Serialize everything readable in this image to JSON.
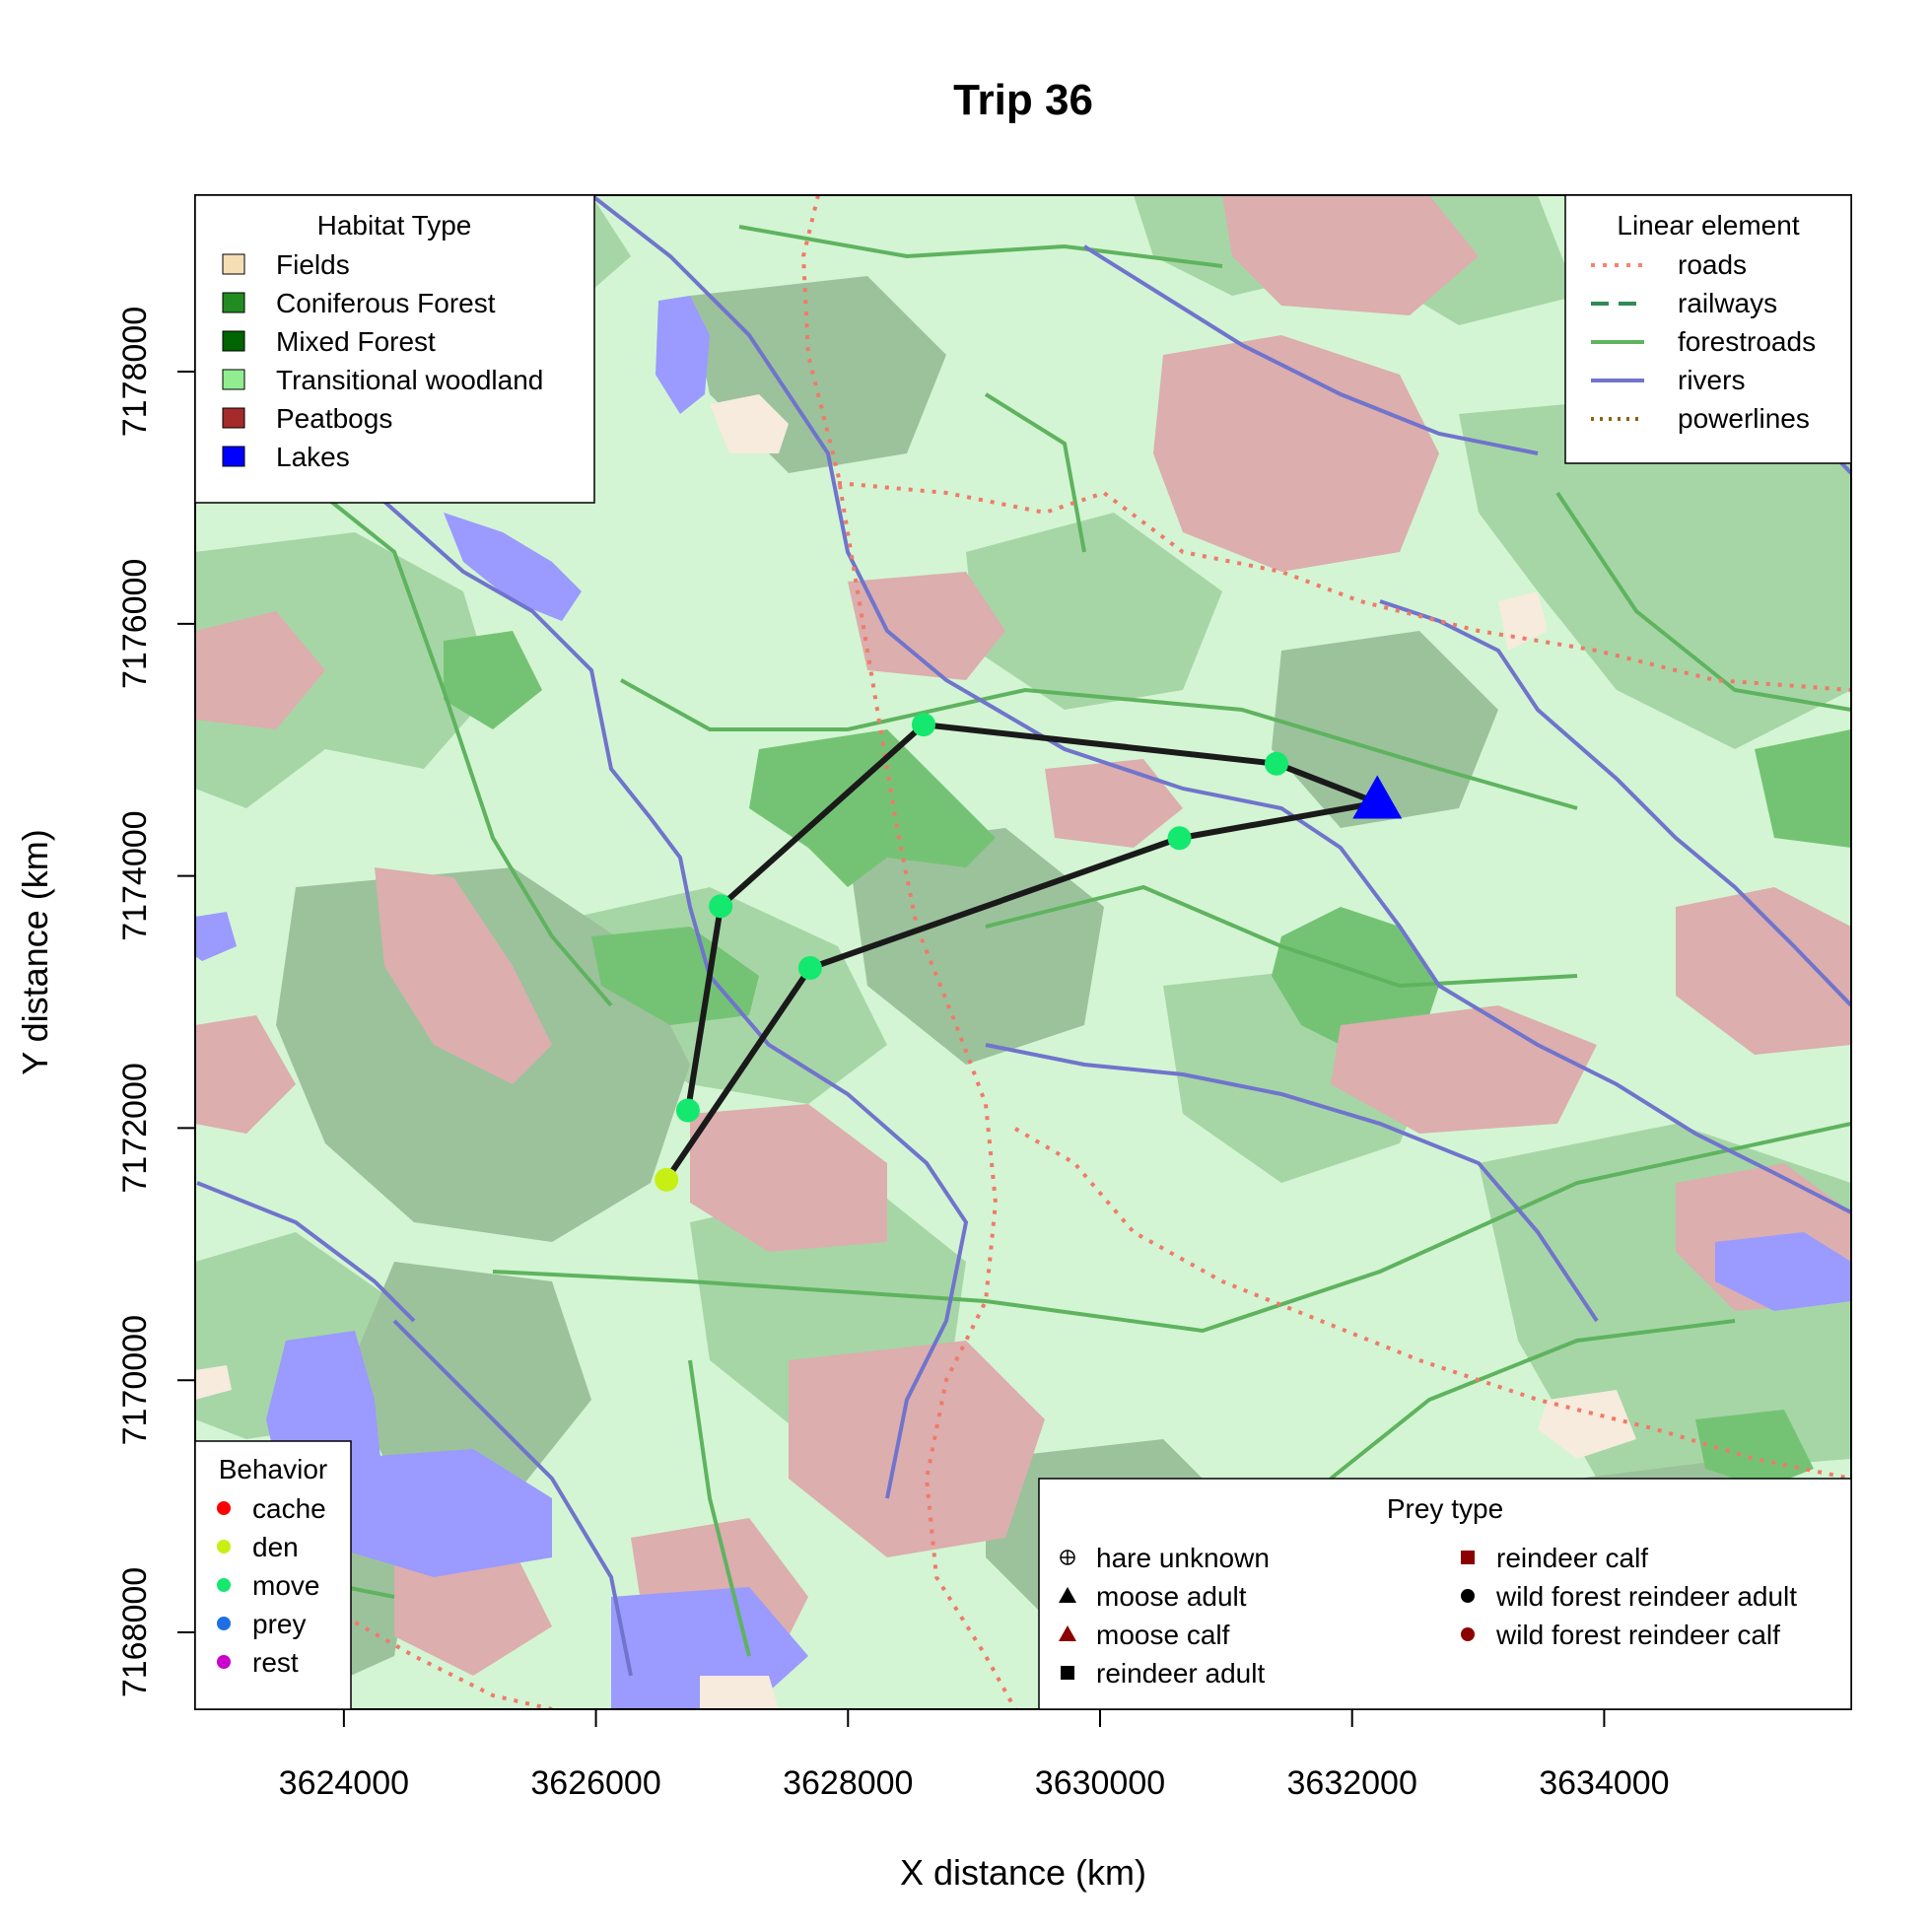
{
  "title": "Trip 36",
  "xlabel": "X distance (km)",
  "ylabel": "Y distance (km)",
  "colors": {
    "transitional": "#d3f5d3",
    "coniferous": "#a6d6a6",
    "mixed": "#9cc29c",
    "dense": "#74c374",
    "peat": "#dcaeae",
    "lake": "#9a9aff",
    "fields": "#f6ebdc",
    "road": "#f07a6a",
    "forestroad": "#5fb35f",
    "river": "#7074cc",
    "track": "#1a1a1a",
    "move": "#14e86e",
    "den": "#c8ef14",
    "den_site": "#0000ff"
  },
  "chart_data": {
    "type": "map",
    "x_ticks": [
      "3624000",
      "3626000",
      "3628000",
      "3630000",
      "3632000",
      "3634000"
    ],
    "y_ticks": [
      "7168000",
      "7170000",
      "7172000",
      "7174000",
      "7176000",
      "7178000"
    ],
    "xlim": [
      3622820,
      3635960
    ],
    "ylim": [
      7167390,
      7179400
    ],
    "track": [
      {
        "x": 3626560,
        "y": 7171590,
        "behavior": "den"
      },
      {
        "x": 3627700,
        "y": 7173270,
        "behavior": "move"
      },
      {
        "x": 3630630,
        "y": 7174300,
        "behavior": "move"
      },
      {
        "x": 3632200,
        "y": 7174580,
        "behavior": "den site"
      },
      {
        "x": 3631400,
        "y": 7174890,
        "behavior": "move"
      },
      {
        "x": 3628600,
        "y": 7175200,
        "behavior": "move"
      },
      {
        "x": 3626990,
        "y": 7173760,
        "behavior": "move"
      },
      {
        "x": 3626730,
        "y": 7172140,
        "behavior": "move"
      }
    ],
    "den_site": {
      "x": 3632200,
      "y": 7174580
    },
    "legend_habitat": {
      "title": "Habitat Type",
      "items": [
        {
          "label": "Fields",
          "color": "#f5deb3"
        },
        {
          "label": "Coniferous Forest",
          "color": "#228b22"
        },
        {
          "label": "Mixed Forest",
          "color": "#006400"
        },
        {
          "label": "Transitional woodland",
          "color": "#90ee90"
        },
        {
          "label": "Peatbogs",
          "color": "#a52a2a"
        },
        {
          "label": "Lakes",
          "color": "#0000ff"
        }
      ]
    },
    "legend_linear": {
      "title": "Linear element",
      "items": [
        {
          "label": "roads",
          "color": "#fa8072",
          "dash": "4 8"
        },
        {
          "label": "railways",
          "color": "#2e8b57",
          "dash": "18 10"
        },
        {
          "label": "forestroads",
          "color": "#5fb35f",
          "dash": ""
        },
        {
          "label": "rivers",
          "color": "#7074cc",
          "dash": ""
        },
        {
          "label": "powerlines",
          "color": "#8b6508",
          "dash": "3 6"
        }
      ]
    },
    "legend_behavior": {
      "title": "Behavior",
      "items": [
        {
          "label": "cache",
          "color": "#ff0000"
        },
        {
          "label": "den",
          "color": "#c8ef14"
        },
        {
          "label": "move",
          "color": "#14e86e"
        },
        {
          "label": "prey",
          "color": "#1e6fe6"
        },
        {
          "label": "rest",
          "color": "#cc00cc"
        }
      ]
    },
    "legend_prey": {
      "title": "Prey type",
      "col1": [
        {
          "label": "hare unknown",
          "symbol": "circle-plus",
          "color": "#000000"
        },
        {
          "label": "moose adult",
          "symbol": "triangle",
          "color": "#000000"
        },
        {
          "label": "moose calf",
          "symbol": "triangle",
          "color": "#8b0000"
        },
        {
          "label": "reindeer adult",
          "symbol": "square",
          "color": "#000000"
        }
      ],
      "col2": [
        {
          "label": "reindeer calf",
          "symbol": "square",
          "color": "#8b0000"
        },
        {
          "label": "wild forest reindeer adult",
          "symbol": "circle",
          "color": "#000000"
        },
        {
          "label": "wild forest reindeer calf",
          "symbol": "circle",
          "color": "#8b0000"
        }
      ]
    }
  }
}
